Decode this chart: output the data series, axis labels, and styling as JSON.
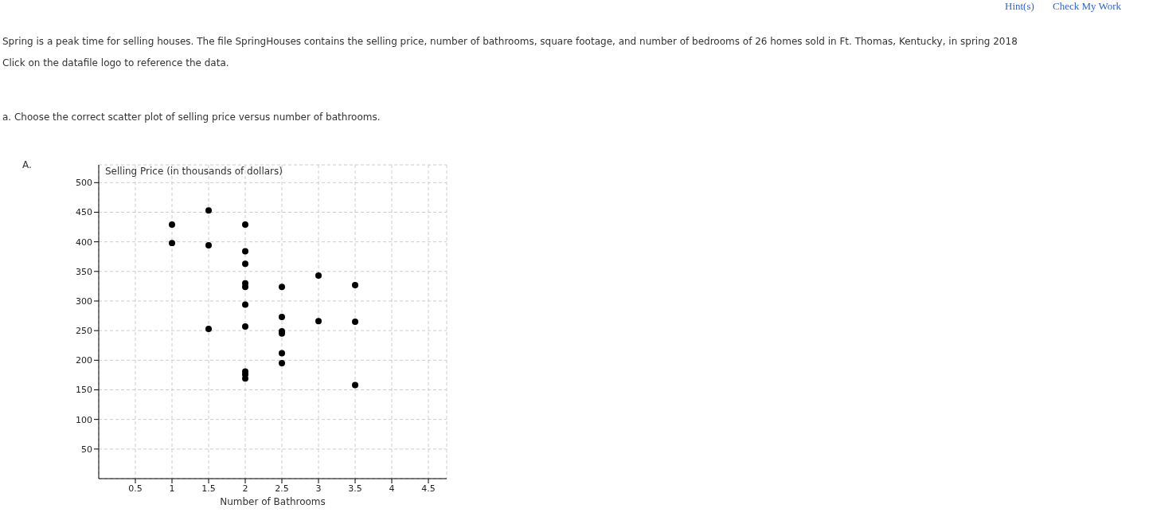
{
  "chart_data": {
    "type": "scatter",
    "xlabel": "Number of Bathrooms",
    "ylabel": "Selling Price (in thousands of dollars)",
    "annotations": [
      "Hint(s)",
      "Check My Work",
      "Spring is a peak time for selling houses. The file SpringHouses contains the selling price, number of bathrooms, square footage, and number of bedrooms of 26 homes sold in Ft. Thomas, Kentucky, in spring 2018",
      "Click on the datafile logo to reference the data.",
      "a. Choose the correct scatter plot of selling price versus number of bathrooms.",
      "A."
    ],
    "x": [
      1,
      1,
      1.5,
      1.5,
      1.5,
      2,
      2,
      2,
      2,
      2,
      2,
      2,
      2,
      2,
      2,
      2.5,
      2.5,
      2.5,
      2.5,
      2.5,
      2.5,
      3,
      3,
      3.5,
      3.5,
      3.5
    ],
    "values": [
      429,
      398,
      453,
      394,
      253,
      429,
      384,
      363,
      330,
      324,
      294,
      257,
      181,
      176,
      169,
      324,
      273,
      249,
      245,
      212,
      195,
      343,
      266,
      327,
      265,
      158
    ],
    "color": "#000000",
    "marker": "circle",
    "xlim": [
      0,
      4.75
    ],
    "ylim": [
      0,
      530
    ],
    "xticks": [
      0.5,
      1,
      1.5,
      2,
      2.5,
      3,
      3.5,
      4,
      4.5
    ],
    "yticks": [
      50,
      100,
      150,
      200,
      250,
      300,
      350,
      400,
      450,
      500
    ],
    "grid": true
  }
}
